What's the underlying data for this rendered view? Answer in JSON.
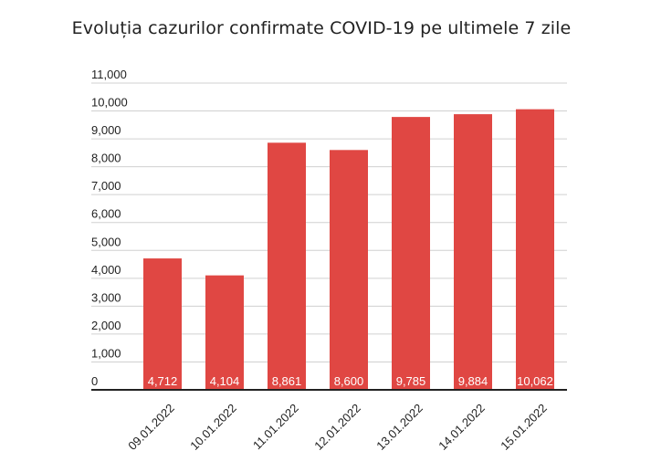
{
  "chart_data": {
    "type": "bar",
    "title": "Evoluția cazurilor confirmate COVID-19 pe ultimele 7 zile",
    "categories": [
      "09.01.2022",
      "10.01.2022",
      "11.01.2022",
      "12.01.2022",
      "13.01.2022",
      "14.01.2022",
      "15.01.2022"
    ],
    "values": [
      4712,
      4104,
      8861,
      8600,
      9785,
      9884,
      10062
    ],
    "value_labels": [
      "4,712",
      "4,104",
      "8,861",
      "8,600",
      "9,785",
      "9,884",
      "10,062"
    ],
    "yticks": [
      "0",
      "1,000",
      "2,000",
      "3,000",
      "4,000",
      "5,000",
      "6,000",
      "7,000",
      "8,000",
      "9,000",
      "10,000",
      "11,000"
    ],
    "ylim": [
      0,
      11000
    ],
    "grid": true,
    "legend": "none",
    "bar_color": "#e04743",
    "xlabel": "",
    "ylabel": ""
  }
}
